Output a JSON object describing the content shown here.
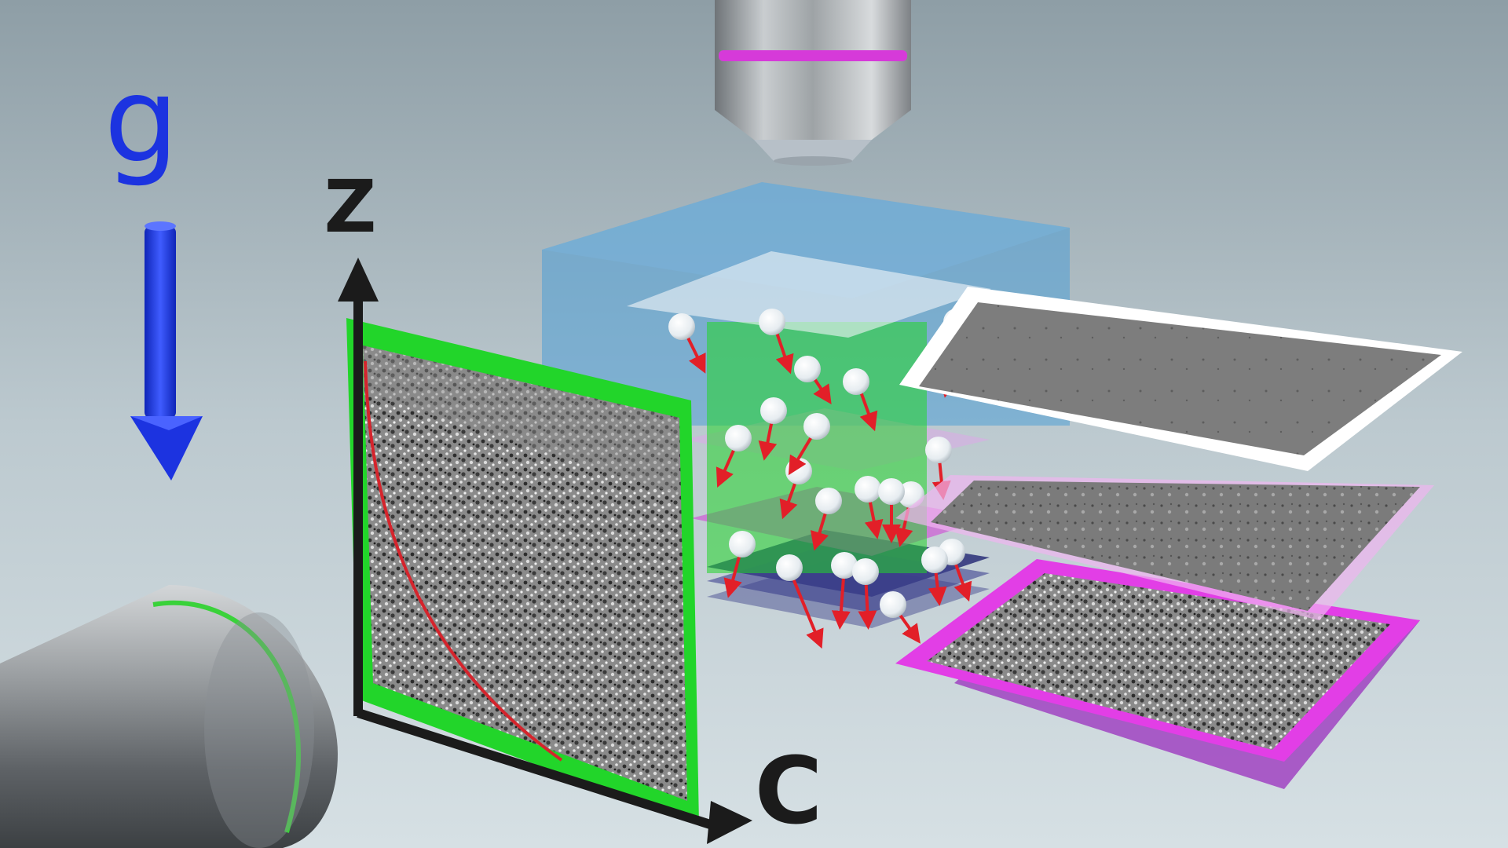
{
  "scene": {
    "labels": {
      "gravity": "g",
      "vertical_axis": "Z",
      "horizontal_axis": "C"
    },
    "colors": {
      "background_top": "#8e9ea6",
      "background_bottom": "#d6e0e4",
      "gravity_arrow": "#1c33e0",
      "axis": "#1b1b1b",
      "tank": "#4f9fd6",
      "side_frame": "#22d52a",
      "bottom_layer_frame": "#e23ee6",
      "top_layer_frame": "#ffffff",
      "particle": "#eef3f7",
      "particle_arrow": "#e21f28",
      "profile_curve": "#d5242c",
      "objective_band_top": "#d63ad9",
      "objective_band_side": "#3ad23a"
    },
    "icons": [
      "top-objective-icon",
      "side-objective-icon",
      "gravity-arrow-icon"
    ]
  }
}
